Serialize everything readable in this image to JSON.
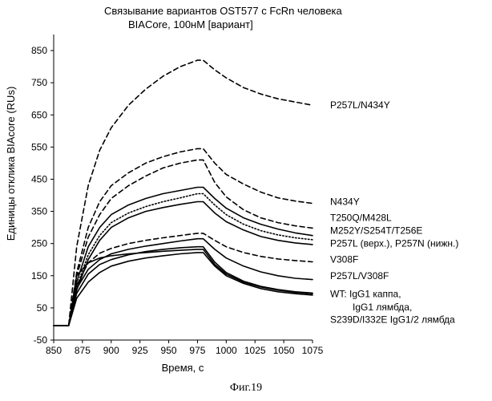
{
  "chart_data": {
    "type": "line",
    "title": "Связывание вариантов OST577 с FcRn человека",
    "subtitle": "BIACore, 100нМ [вариант]",
    "xlabel": "Время, с",
    "ylabel": "Единицы отклика BIAcore (RUs)",
    "xlim": [
      850,
      1075
    ],
    "ylim": [
      -50,
      900
    ],
    "xticks": [
      850,
      875,
      900,
      925,
      950,
      975,
      1000,
      1025,
      1050,
      1075
    ],
    "yticks": [
      -50,
      50,
      150,
      250,
      350,
      450,
      550,
      650,
      750,
      850
    ],
    "grid": false,
    "series": [
      {
        "name": "P257L/N434Y",
        "style": "dashed",
        "x": [
          850,
          860,
          863,
          870,
          880,
          890,
          900,
          915,
          930,
          945,
          960,
          975,
          980,
          990,
          1000,
          1015,
          1030,
          1045,
          1060,
          1075
        ],
        "y": [
          -5,
          -5,
          -5,
          240,
          430,
          540,
          610,
          680,
          730,
          770,
          800,
          820,
          820,
          790,
          765,
          735,
          715,
          700,
          690,
          680
        ]
      },
      {
        "name": "N434Y",
        "style": "dashed",
        "x": [
          850,
          860,
          863,
          870,
          880,
          890,
          900,
          915,
          930,
          945,
          960,
          975,
          980,
          990,
          1000,
          1015,
          1030,
          1045,
          1060,
          1075
        ],
        "y": [
          -5,
          -5,
          -5,
          160,
          300,
          380,
          430,
          470,
          500,
          520,
          535,
          545,
          545,
          500,
          465,
          435,
          410,
          392,
          382,
          375
        ]
      },
      {
        "name": "T250Q/M428L",
        "style": "dashed",
        "x": [
          850,
          860,
          863,
          870,
          880,
          890,
          900,
          915,
          930,
          945,
          960,
          975,
          980,
          990,
          1000,
          1015,
          1030,
          1045,
          1060,
          1075
        ],
        "y": [
          -5,
          -5,
          -5,
          150,
          270,
          340,
          390,
          430,
          460,
          485,
          500,
          510,
          510,
          440,
          395,
          355,
          330,
          315,
          305,
          298
        ]
      },
      {
        "name": "M252Y/S254T/T256E",
        "style": "solid",
        "x": [
          850,
          860,
          863,
          870,
          880,
          890,
          900,
          915,
          930,
          945,
          960,
          975,
          980,
          990,
          1000,
          1015,
          1030,
          1045,
          1060,
          1075
        ],
        "y": [
          -5,
          -5,
          -5,
          130,
          240,
          300,
          340,
          370,
          390,
          405,
          415,
          425,
          425,
          390,
          360,
          330,
          310,
          295,
          283,
          275
        ]
      },
      {
        "name": "P257L (верх.)",
        "style": "dotted",
        "x": [
          850,
          860,
          863,
          870,
          880,
          890,
          900,
          915,
          930,
          945,
          960,
          975,
          980,
          990,
          1000,
          1015,
          1030,
          1045,
          1060,
          1075
        ],
        "y": [
          -5,
          -5,
          -5,
          115,
          215,
          275,
          315,
          345,
          365,
          380,
          392,
          405,
          405,
          370,
          340,
          310,
          290,
          277,
          268,
          262
        ]
      },
      {
        "name": "P257N (нижн.)",
        "style": "solid",
        "x": [
          850,
          860,
          863,
          870,
          880,
          890,
          900,
          915,
          930,
          945,
          960,
          975,
          980,
          990,
          1000,
          1015,
          1030,
          1045,
          1060,
          1075
        ],
        "y": [
          -5,
          -5,
          -5,
          105,
          200,
          260,
          300,
          330,
          350,
          362,
          372,
          380,
          380,
          345,
          318,
          292,
          272,
          260,
          252,
          247
        ]
      },
      {
        "name": "V308F",
        "style": "dashed",
        "x": [
          850,
          860,
          863,
          870,
          880,
          890,
          900,
          915,
          930,
          945,
          960,
          975,
          980,
          990,
          1000,
          1015,
          1030,
          1045,
          1060,
          1075
        ],
        "y": [
          -5,
          -5,
          -5,
          120,
          190,
          220,
          235,
          250,
          260,
          268,
          275,
          282,
          282,
          260,
          240,
          222,
          210,
          202,
          197,
          193
        ]
      },
      {
        "name": "P257L/V308F",
        "style": "solid",
        "x": [
          850,
          860,
          863,
          870,
          880,
          890,
          900,
          915,
          930,
          945,
          960,
          975,
          980,
          990,
          1000,
          1015,
          1030,
          1045,
          1060,
          1075
        ],
        "y": [
          -5,
          -5,
          -5,
          110,
          170,
          200,
          218,
          232,
          242,
          250,
          258,
          265,
          265,
          232,
          205,
          180,
          162,
          150,
          142,
          138
        ]
      },
      {
        "name": "WT: IgG1 каппа",
        "style": "solid",
        "x": [
          850,
          860,
          863,
          870,
          880,
          890,
          900,
          915,
          930,
          945,
          960,
          975,
          980,
          990,
          1000,
          1015,
          1030,
          1045,
          1060,
          1075
        ],
        "y": [
          -5,
          -5,
          -5,
          150,
          190,
          205,
          212,
          218,
          222,
          226,
          229,
          232,
          232,
          185,
          155,
          130,
          115,
          105,
          98,
          94
        ]
      },
      {
        "name": "IgG1 лямбда",
        "style": "solid",
        "x": [
          850,
          860,
          863,
          870,
          880,
          890,
          900,
          915,
          930,
          945,
          960,
          975,
          980,
          990,
          1000,
          1015,
          1030,
          1045,
          1060,
          1075
        ],
        "y": [
          -5,
          -5,
          -5,
          95,
          155,
          185,
          200,
          215,
          225,
          232,
          237,
          240,
          240,
          192,
          160,
          133,
          117,
          107,
          100,
          96
        ]
      },
      {
        "name": "S239D/I332E IgG1/2 лямбда",
        "style": "solid",
        "x": [
          850,
          860,
          863,
          870,
          880,
          890,
          900,
          915,
          930,
          945,
          960,
          975,
          980,
          990,
          1000,
          1015,
          1030,
          1045,
          1060,
          1075
        ],
        "y": [
          -5,
          -5,
          -5,
          80,
          130,
          160,
          180,
          195,
          205,
          212,
          218,
          222,
          222,
          180,
          150,
          126,
          110,
          100,
          94,
          90
        ]
      }
    ],
    "annotations": [
      {
        "text": "P257L/N434Y",
        "y": 680
      },
      {
        "text": "N434Y",
        "y": 380
      },
      {
        "text": "T250Q/M428L",
        "y": 330
      },
      {
        "text": "M252Y/S254T/T256E",
        "y": 290
      },
      {
        "text": "P257L (верх.), P257N (нижн.)",
        "y": 250
      },
      {
        "text": "V308F",
        "y": 200
      },
      {
        "text": "P257L/V308F",
        "y": 150
      },
      {
        "text": "WT: IgG1 каппа,",
        "y": 93
      },
      {
        "text": "IgG1 лямбда,",
        "y": 52
      },
      {
        "text": "S239D/I332E IgG1/2 лямбда",
        "y": 14
      }
    ]
  },
  "figure": {
    "caption": "Фиг.19"
  },
  "colors": {
    "line": "#000000",
    "background": "#ffffff"
  }
}
